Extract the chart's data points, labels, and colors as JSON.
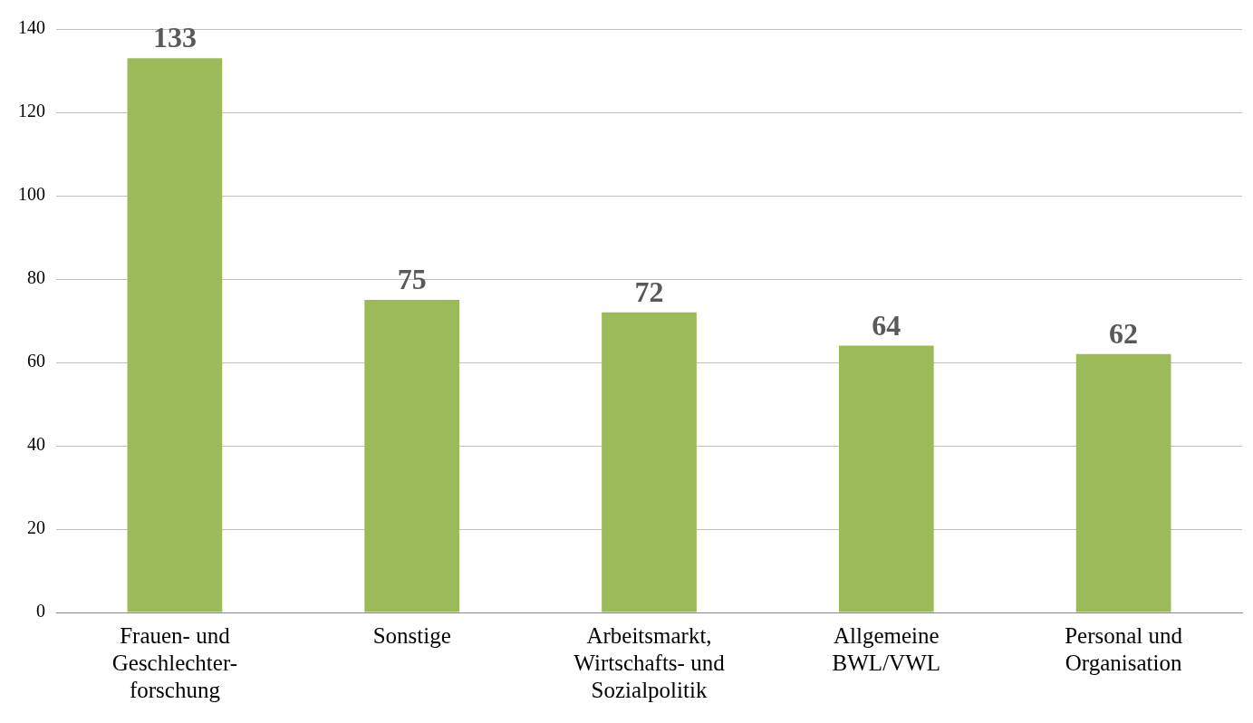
{
  "chart_data": {
    "type": "bar",
    "categories": [
      "Frauen- und\nGeschlechter-\nforschung",
      "Sonstige",
      "Arbeitsmarkt,\nWirtschafts- und\nSozialpolitik",
      "Allgemeine\nBWL/VWL",
      "Personal und\nOrganisation"
    ],
    "values": [
      133,
      75,
      72,
      64,
      62
    ],
    "color": "#9bbb59",
    "ylim": [
      0,
      140
    ],
    "yticks": [
      0,
      20,
      40,
      60,
      80,
      100,
      120,
      140
    ],
    "grid": "y",
    "data_labels": true,
    "legend": false
  }
}
